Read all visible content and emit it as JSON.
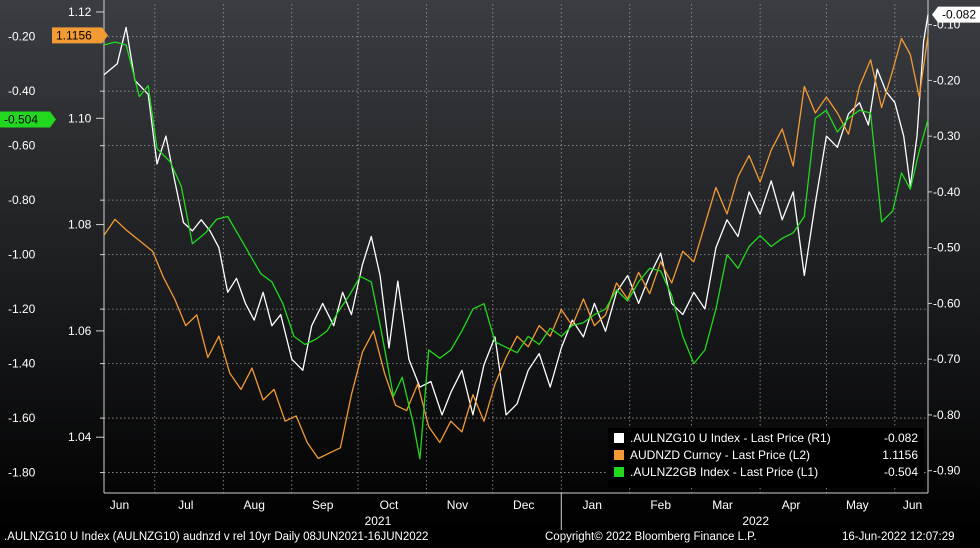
{
  "chart_data": {
    "type": "line",
    "title": "",
    "x_range": [
      "2021-06-08",
      "2022-06-16"
    ],
    "month_ticks": [
      {
        "label": "Jun",
        "date": "2021-06-15"
      },
      {
        "label": "Jul",
        "date": "2021-07-15"
      },
      {
        "label": "Aug",
        "date": "2021-08-15"
      },
      {
        "label": "Sep",
        "date": "2021-09-15"
      },
      {
        "label": "Oct",
        "date": "2021-10-15"
      },
      {
        "label": "Nov",
        "date": "2021-11-15"
      },
      {
        "label": "Dec",
        "date": "2021-12-15"
      },
      {
        "label": "Jan",
        "date": "2022-01-15"
      },
      {
        "label": "Feb",
        "date": "2022-02-15"
      },
      {
        "label": "Mar",
        "date": "2022-03-15"
      },
      {
        "label": "Apr",
        "date": "2022-04-15"
      },
      {
        "label": "May",
        "date": "2022-05-15"
      },
      {
        "label": "Jun",
        "date": "2022-06-09"
      }
    ],
    "year_labels": [
      {
        "label": "2021",
        "date": "2021-10-10"
      },
      {
        "label": "2022",
        "date": "2022-03-30"
      }
    ],
    "year_divider_date": "2022-01-01",
    "axes": {
      "L1": {
        "ylim": [
          -1.875,
          -0.08
        ],
        "ticks": [
          "-0.20",
          "-0.40",
          "-0.60",
          "-0.80",
          "-1.00",
          "-1.20",
          "-1.40",
          "-1.60",
          "-1.80"
        ]
      },
      "L2": {
        "ylim": [
          1.0295,
          1.1215
        ],
        "ticks": [
          "1.12",
          "1.10",
          "1.08",
          "1.06",
          "1.04"
        ]
      },
      "R1": {
        "ylim": [
          -0.94,
          -0.063
        ],
        "ticks": [
          "-0.10",
          "-0.20",
          "-0.30",
          "-0.40",
          "-0.50",
          "-0.60",
          "-0.70",
          "-0.80",
          "-0.90"
        ]
      }
    },
    "series": [
      {
        "name": ".AULNZG10 U Index - Last Price (R1)",
        "last_value": "-0.082",
        "color": "#ffffff",
        "axis": "R1",
        "points": [
          [
            "2021-06-08",
            -0.19
          ],
          [
            "2021-06-14",
            -0.17
          ],
          [
            "2021-06-18",
            -0.105
          ],
          [
            "2021-06-22",
            -0.2
          ],
          [
            "2021-06-28",
            -0.225
          ],
          [
            "2021-07-02",
            -0.35
          ],
          [
            "2021-07-06",
            -0.3
          ],
          [
            "2021-07-10",
            -0.38
          ],
          [
            "2021-07-14",
            -0.455
          ],
          [
            "2021-07-18",
            -0.47
          ],
          [
            "2021-07-22",
            -0.45
          ],
          [
            "2021-07-26",
            -0.47
          ],
          [
            "2021-07-30",
            -0.5
          ],
          [
            "2021-08-03",
            -0.58
          ],
          [
            "2021-08-07",
            -0.555
          ],
          [
            "2021-08-11",
            -0.6
          ],
          [
            "2021-08-15",
            -0.63
          ],
          [
            "2021-08-19",
            -0.58
          ],
          [
            "2021-08-23",
            -0.64
          ],
          [
            "2021-08-27",
            -0.62
          ],
          [
            "2021-09-01",
            -0.7
          ],
          [
            "2021-09-06",
            -0.72
          ],
          [
            "2021-09-10",
            -0.64
          ],
          [
            "2021-09-15",
            -0.6
          ],
          [
            "2021-09-20",
            -0.64
          ],
          [
            "2021-09-24",
            -0.58
          ],
          [
            "2021-09-28",
            -0.62
          ],
          [
            "2021-10-03",
            -0.53
          ],
          [
            "2021-10-07",
            -0.48
          ],
          [
            "2021-10-11",
            -0.55
          ],
          [
            "2021-10-15",
            -0.68
          ],
          [
            "2021-10-19",
            -0.56
          ],
          [
            "2021-10-24",
            -0.7
          ],
          [
            "2021-10-29",
            -0.75
          ],
          [
            "2021-11-03",
            -0.74
          ],
          [
            "2021-11-08",
            -0.8
          ],
          [
            "2021-11-12",
            -0.76
          ],
          [
            "2021-11-17",
            -0.72
          ],
          [
            "2021-11-22",
            -0.8
          ],
          [
            "2021-11-27",
            -0.71
          ],
          [
            "2021-12-02",
            -0.66
          ],
          [
            "2021-12-07",
            -0.8
          ],
          [
            "2021-12-12",
            -0.78
          ],
          [
            "2021-12-17",
            -0.72
          ],
          [
            "2021-12-22",
            -0.69
          ],
          [
            "2021-12-27",
            -0.75
          ],
          [
            "2022-01-01",
            -0.68
          ],
          [
            "2022-01-06",
            -0.63
          ],
          [
            "2022-01-11",
            -0.66
          ],
          [
            "2022-01-16",
            -0.6
          ],
          [
            "2022-01-21",
            -0.65
          ],
          [
            "2022-01-26",
            -0.58
          ],
          [
            "2022-01-31",
            -0.55
          ],
          [
            "2022-02-05",
            -0.6
          ],
          [
            "2022-02-10",
            -0.55
          ],
          [
            "2022-02-15",
            -0.51
          ],
          [
            "2022-02-20",
            -0.6
          ],
          [
            "2022-02-25",
            -0.62
          ],
          [
            "2022-03-02",
            -0.58
          ],
          [
            "2022-03-07",
            -0.61
          ],
          [
            "2022-03-12",
            -0.5
          ],
          [
            "2022-03-17",
            -0.45
          ],
          [
            "2022-03-22",
            -0.48
          ],
          [
            "2022-03-27",
            -0.4
          ],
          [
            "2022-04-01",
            -0.44
          ],
          [
            "2022-04-06",
            -0.38
          ],
          [
            "2022-04-11",
            -0.45
          ],
          [
            "2022-04-16",
            -0.4
          ],
          [
            "2022-04-21",
            -0.55
          ],
          [
            "2022-04-26",
            -0.42
          ],
          [
            "2022-05-01",
            -0.3
          ],
          [
            "2022-05-06",
            -0.32
          ],
          [
            "2022-05-11",
            -0.26
          ],
          [
            "2022-05-16",
            -0.24
          ],
          [
            "2022-05-20",
            -0.28
          ],
          [
            "2022-05-24",
            -0.18
          ],
          [
            "2022-05-28",
            -0.22
          ],
          [
            "2022-06-01",
            -0.24
          ],
          [
            "2022-06-05",
            -0.3
          ],
          [
            "2022-06-08",
            -0.39
          ],
          [
            "2022-06-11",
            -0.3
          ],
          [
            "2022-06-14",
            -0.13
          ],
          [
            "2022-06-16",
            -0.082
          ]
        ]
      },
      {
        "name": "AUDNZD Curncy - Last Price (L2)",
        "last_value": "1.1156",
        "color": "#f29a33",
        "axis": "L2",
        "points": [
          [
            "2021-06-08",
            1.078
          ],
          [
            "2021-06-13",
            1.081
          ],
          [
            "2021-06-18",
            1.079
          ],
          [
            "2021-06-24",
            1.077
          ],
          [
            "2021-06-30",
            1.075
          ],
          [
            "2021-07-05",
            1.07
          ],
          [
            "2021-07-10",
            1.066
          ],
          [
            "2021-07-15",
            1.061
          ],
          [
            "2021-07-20",
            1.063
          ],
          [
            "2021-07-25",
            1.055
          ],
          [
            "2021-07-30",
            1.059
          ],
          [
            "2021-08-04",
            1.052
          ],
          [
            "2021-08-09",
            1.049
          ],
          [
            "2021-08-14",
            1.053
          ],
          [
            "2021-08-19",
            1.047
          ],
          [
            "2021-08-24",
            1.049
          ],
          [
            "2021-08-29",
            1.043
          ],
          [
            "2021-09-03",
            1.044
          ],
          [
            "2021-09-08",
            1.039
          ],
          [
            "2021-09-13",
            1.036
          ],
          [
            "2021-09-18",
            1.037
          ],
          [
            "2021-09-23",
            1.038
          ],
          [
            "2021-09-28",
            1.048
          ],
          [
            "2021-10-03",
            1.056
          ],
          [
            "2021-10-08",
            1.06
          ],
          [
            "2021-10-13",
            1.052
          ],
          [
            "2021-10-18",
            1.046
          ],
          [
            "2021-10-23",
            1.045
          ],
          [
            "2021-10-28",
            1.05
          ],
          [
            "2021-11-02",
            1.042
          ],
          [
            "2021-11-07",
            1.039
          ],
          [
            "2021-11-12",
            1.043
          ],
          [
            "2021-11-17",
            1.041
          ],
          [
            "2021-11-22",
            1.048
          ],
          [
            "2021-11-27",
            1.043
          ],
          [
            "2021-12-02",
            1.05
          ],
          [
            "2021-12-07",
            1.055
          ],
          [
            "2021-12-12",
            1.059
          ],
          [
            "2021-12-17",
            1.057
          ],
          [
            "2021-12-22",
            1.061
          ],
          [
            "2021-12-27",
            1.059
          ],
          [
            "2022-01-01",
            1.064
          ],
          [
            "2022-01-06",
            1.061
          ],
          [
            "2022-01-11",
            1.066
          ],
          [
            "2022-01-16",
            1.061
          ],
          [
            "2022-01-21",
            1.063
          ],
          [
            "2022-01-26",
            1.069
          ],
          [
            "2022-01-31",
            1.066
          ],
          [
            "2022-02-05",
            1.071
          ],
          [
            "2022-02-10",
            1.067
          ],
          [
            "2022-02-15",
            1.073
          ],
          [
            "2022-02-20",
            1.069
          ],
          [
            "2022-02-25",
            1.075
          ],
          [
            "2022-03-02",
            1.073
          ],
          [
            "2022-03-07",
            1.08
          ],
          [
            "2022-03-12",
            1.087
          ],
          [
            "2022-03-17",
            1.082
          ],
          [
            "2022-03-22",
            1.089
          ],
          [
            "2022-03-27",
            1.093
          ],
          [
            "2022-04-01",
            1.088
          ],
          [
            "2022-04-06",
            1.094
          ],
          [
            "2022-04-11",
            1.098
          ],
          [
            "2022-04-16",
            1.091
          ],
          [
            "2022-04-21",
            1.106
          ],
          [
            "2022-04-26",
            1.101
          ],
          [
            "2022-05-01",
            1.104
          ],
          [
            "2022-05-06",
            1.101
          ],
          [
            "2022-05-11",
            1.097
          ],
          [
            "2022-05-16",
            1.106
          ],
          [
            "2022-05-21",
            1.111
          ],
          [
            "2022-05-26",
            1.102
          ],
          [
            "2022-05-31",
            1.109
          ],
          [
            "2022-06-04",
            1.115
          ],
          [
            "2022-06-08",
            1.112
          ],
          [
            "2022-06-12",
            1.104
          ],
          [
            "2022-06-16",
            1.1156
          ]
        ]
      },
      {
        "name": ".AULNZ2GB Index - Last Price (L1)",
        "last_value": "-0.504",
        "color": "#22d81f",
        "axis": "L1",
        "points": [
          [
            "2021-06-08",
            -0.23
          ],
          [
            "2021-06-13",
            -0.22
          ],
          [
            "2021-06-18",
            -0.23
          ],
          [
            "2021-06-24",
            -0.42
          ],
          [
            "2021-06-28",
            -0.38
          ],
          [
            "2021-07-02",
            -0.61
          ],
          [
            "2021-07-08",
            -0.66
          ],
          [
            "2021-07-13",
            -0.75
          ],
          [
            "2021-07-18",
            -0.96
          ],
          [
            "2021-07-24",
            -0.92
          ],
          [
            "2021-07-29",
            -0.87
          ],
          [
            "2021-08-03",
            -0.86
          ],
          [
            "2021-08-08",
            -0.93
          ],
          [
            "2021-08-13",
            -1.0
          ],
          [
            "2021-08-18",
            -1.07
          ],
          [
            "2021-08-23",
            -1.1
          ],
          [
            "2021-08-28",
            -1.18
          ],
          [
            "2021-09-02",
            -1.3
          ],
          [
            "2021-09-07",
            -1.33
          ],
          [
            "2021-09-12",
            -1.31
          ],
          [
            "2021-09-17",
            -1.28
          ],
          [
            "2021-09-22",
            -1.21
          ],
          [
            "2021-09-27",
            -1.15
          ],
          [
            "2021-10-02",
            -1.08
          ],
          [
            "2021-10-07",
            -1.1
          ],
          [
            "2021-10-12",
            -1.3
          ],
          [
            "2021-10-17",
            -1.52
          ],
          [
            "2021-10-21",
            -1.45
          ],
          [
            "2021-10-26",
            -1.62
          ],
          [
            "2021-10-29",
            -1.75
          ],
          [
            "2021-11-02",
            -1.35
          ],
          [
            "2021-11-07",
            -1.38
          ],
          [
            "2021-11-12",
            -1.35
          ],
          [
            "2021-11-17",
            -1.28
          ],
          [
            "2021-11-22",
            -1.2
          ],
          [
            "2021-11-27",
            -1.18
          ],
          [
            "2021-12-02",
            -1.32
          ],
          [
            "2021-12-07",
            -1.34
          ],
          [
            "2021-12-12",
            -1.36
          ],
          [
            "2021-12-17",
            -1.3
          ],
          [
            "2021-12-22",
            -1.33
          ],
          [
            "2021-12-27",
            -1.27
          ],
          [
            "2022-01-01",
            -1.3
          ],
          [
            "2022-01-06",
            -1.26
          ],
          [
            "2022-01-11",
            -1.25
          ],
          [
            "2022-01-16",
            -1.22
          ],
          [
            "2022-01-21",
            -1.2
          ],
          [
            "2022-01-26",
            -1.13
          ],
          [
            "2022-01-31",
            -1.17
          ],
          [
            "2022-02-05",
            -1.1
          ],
          [
            "2022-02-10",
            -1.05
          ],
          [
            "2022-02-15",
            -1.06
          ],
          [
            "2022-02-20",
            -1.15
          ],
          [
            "2022-02-25",
            -1.3
          ],
          [
            "2022-03-02",
            -1.4
          ],
          [
            "2022-03-07",
            -1.35
          ],
          [
            "2022-03-12",
            -1.2
          ],
          [
            "2022-03-17",
            -1.0
          ],
          [
            "2022-03-22",
            -1.05
          ],
          [
            "2022-03-27",
            -0.97
          ],
          [
            "2022-04-01",
            -0.93
          ],
          [
            "2022-04-06",
            -0.97
          ],
          [
            "2022-04-11",
            -0.94
          ],
          [
            "2022-04-16",
            -0.92
          ],
          [
            "2022-04-21",
            -0.86
          ],
          [
            "2022-04-26",
            -0.5
          ],
          [
            "2022-05-01",
            -0.47
          ],
          [
            "2022-05-06",
            -0.55
          ],
          [
            "2022-05-11",
            -0.5
          ],
          [
            "2022-05-16",
            -0.47
          ],
          [
            "2022-05-21",
            -0.48
          ],
          [
            "2022-05-26",
            -0.88
          ],
          [
            "2022-05-31",
            -0.84
          ],
          [
            "2022-06-04",
            -0.7
          ],
          [
            "2022-06-08",
            -0.76
          ],
          [
            "2022-06-12",
            -0.62
          ],
          [
            "2022-06-16",
            -0.504
          ]
        ]
      }
    ],
    "legend": {
      "placement": "bottom-right"
    },
    "grid": true
  },
  "footer": {
    "left": ".AULNZG10 U Index (AULNZG10) audnzd v rel 10yr  Daily 08JUN2021-16JUN2022",
    "copyright": "Copyright© 2022 Bloomberg Finance L.P.",
    "timestamp": "16-Jun-2022 12:07:29"
  },
  "colors": {
    "background_top": "#3a3d42",
    "background_bottom": "#000000",
    "grid": "#9a9a9a"
  }
}
